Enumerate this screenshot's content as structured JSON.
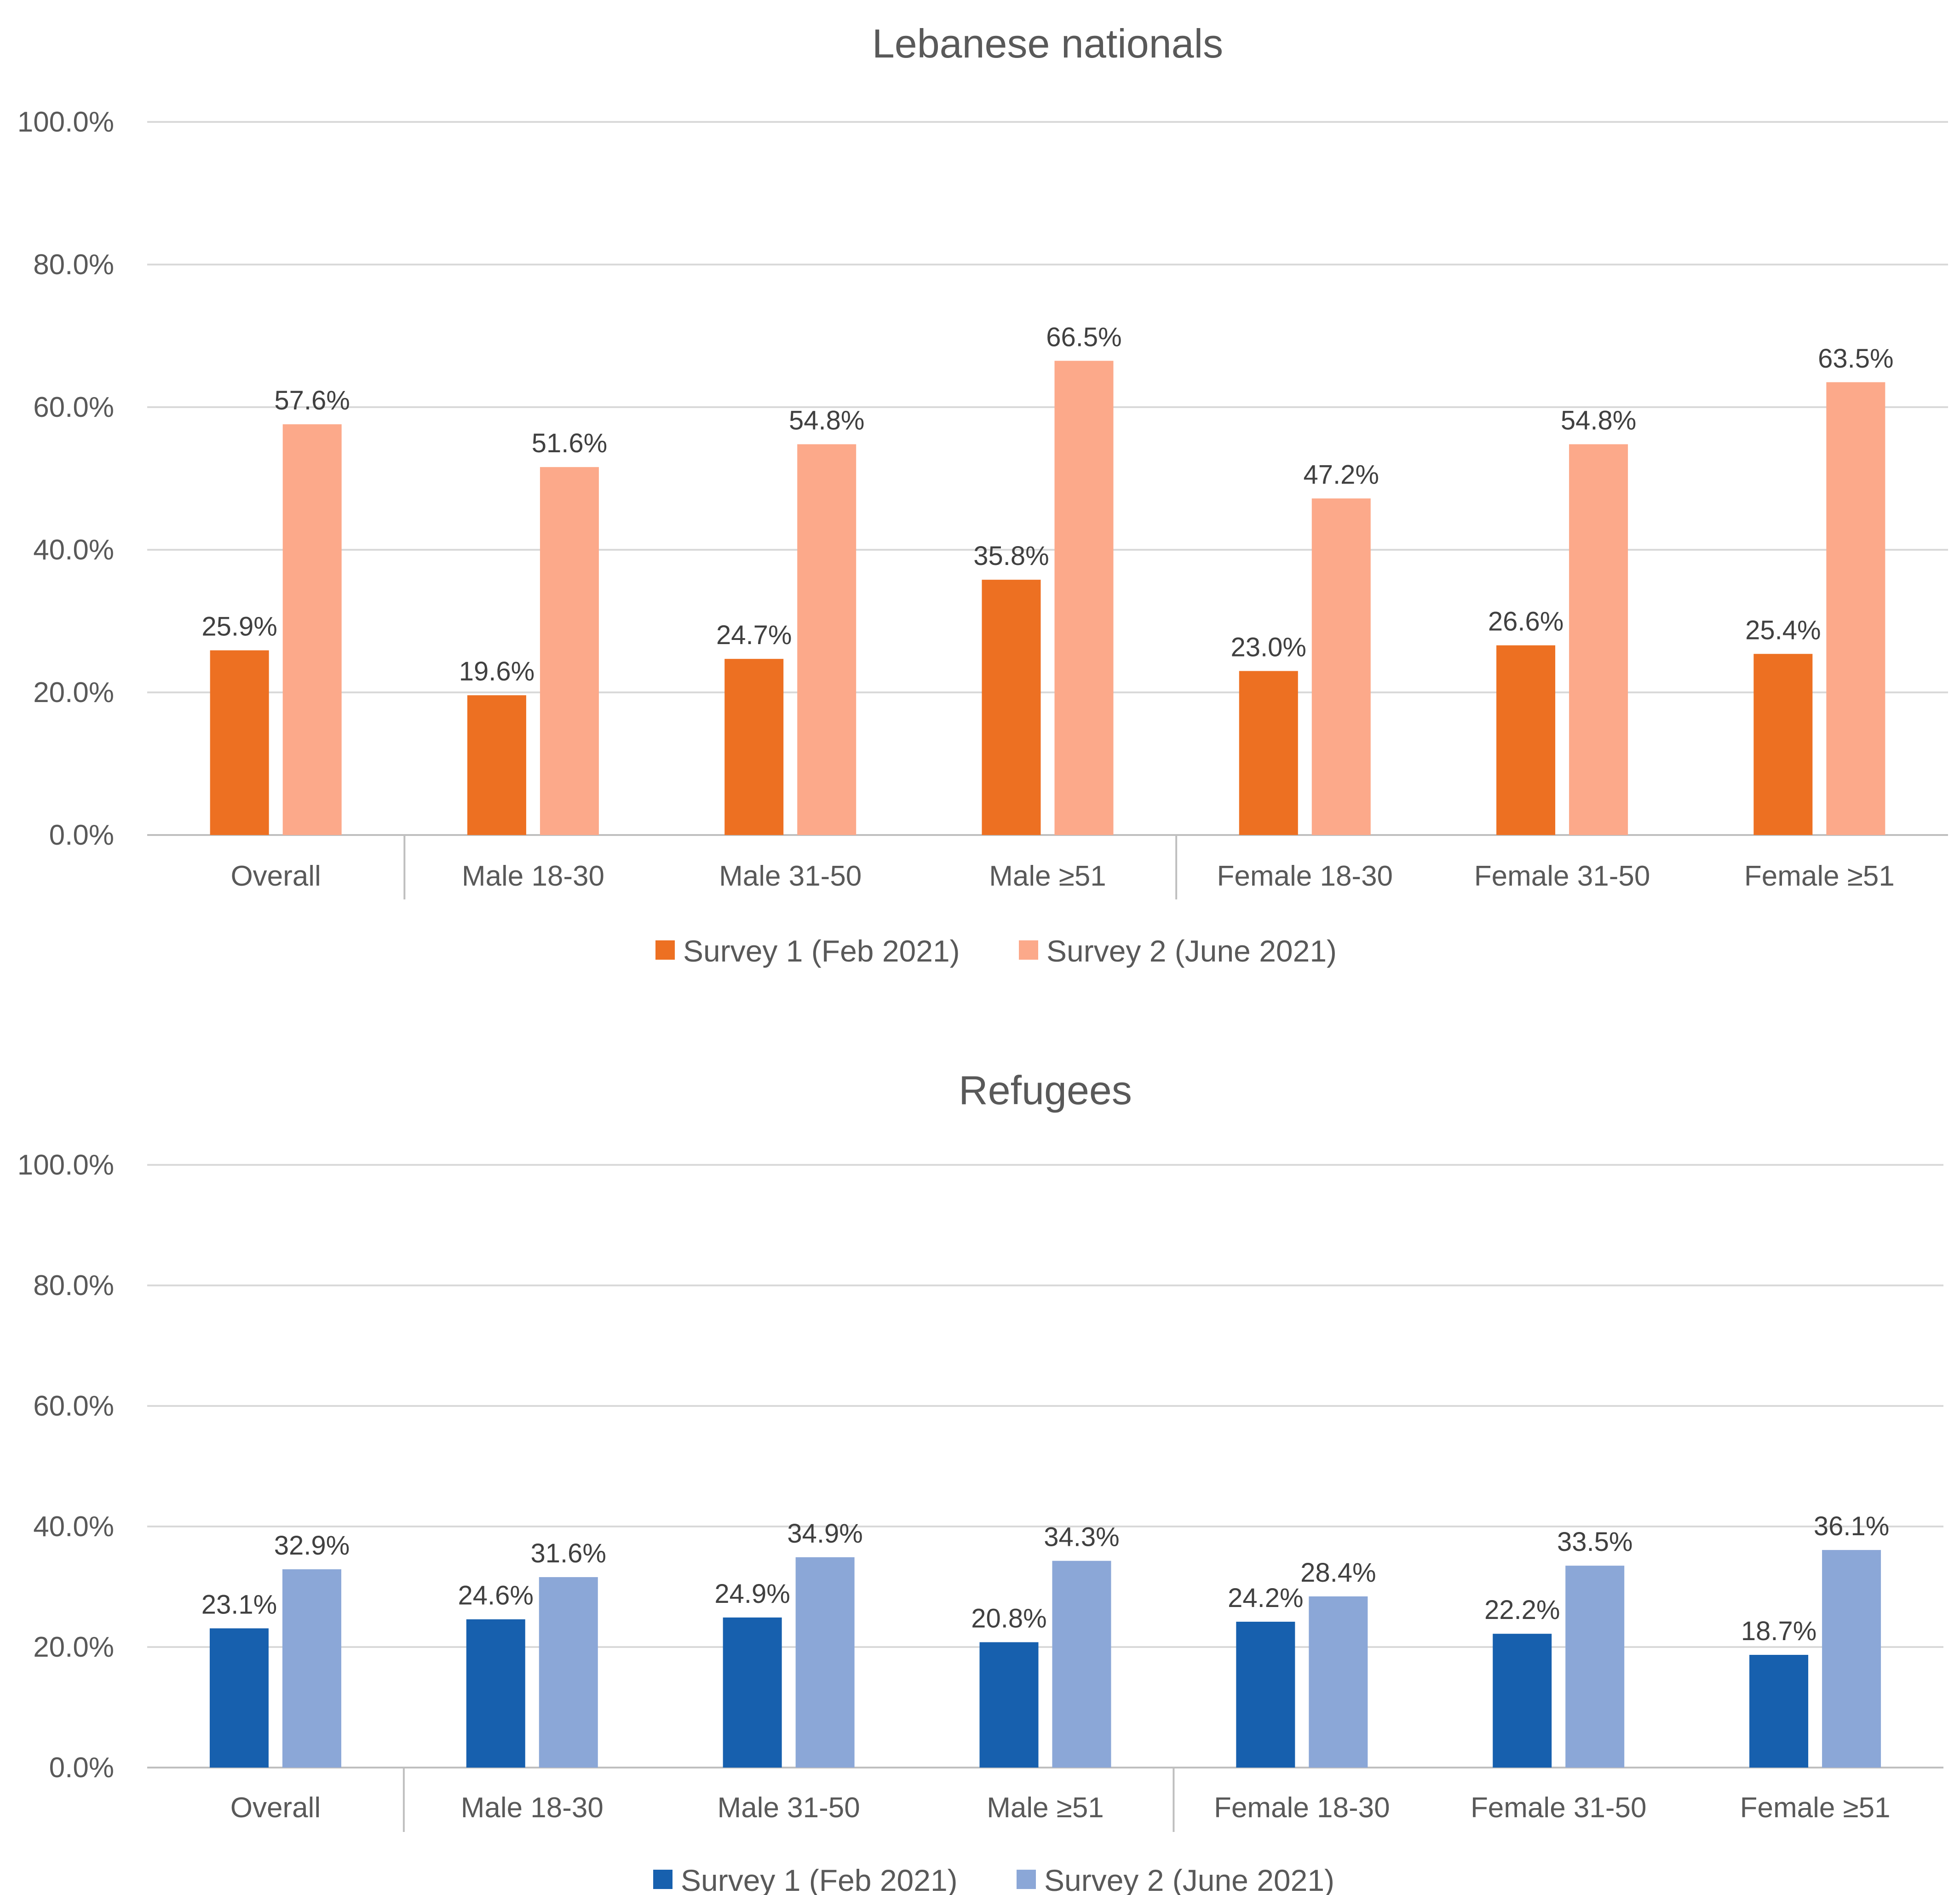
{
  "chart_data": [
    {
      "type": "bar",
      "title": "Lebanese nationals",
      "categories": [
        "Overall",
        "Male 18-30",
        "Male 31-50",
        "Male ≥51",
        "Female 18-30",
        "Female 31-50",
        "Female ≥51"
      ],
      "series": [
        {
          "name": "Survey 1 (Feb 2021)",
          "color": "#ED7022",
          "values": [
            25.9,
            19.6,
            24.7,
            35.8,
            23.0,
            26.6,
            25.4
          ],
          "labels": [
            "25.9%",
            "19.6%",
            "24.7%",
            "35.8%",
            "23.0%",
            "26.6%",
            "25.4%"
          ]
        },
        {
          "name": "Survey 2 (June 2021)",
          "color": "#FCA98A",
          "values": [
            57.6,
            51.6,
            54.8,
            66.5,
            47.2,
            54.8,
            63.5
          ],
          "labels": [
            "57.6%",
            "51.6%",
            "54.8%",
            "66.5%",
            "47.2%",
            "54.8%",
            "63.5%"
          ]
        }
      ],
      "ylim": [
        0,
        100
      ],
      "yticks": [
        "0.0%",
        "20.0%",
        "40.0%",
        "60.0%",
        "80.0%",
        "100.0%"
      ],
      "grid": true,
      "legend": "bottom"
    },
    {
      "type": "bar",
      "title": "Refugees",
      "categories": [
        "Overall",
        "Male 18-30",
        "Male 31-50",
        "Male ≥51",
        "Female 18-30",
        "Female 31-50",
        "Female ≥51"
      ],
      "series": [
        {
          "name": "Survey 1 (Feb 2021)",
          "color": "#1760AE",
          "values": [
            23.1,
            24.6,
            24.9,
            20.8,
            24.2,
            22.2,
            18.7
          ],
          "labels": [
            "23.1%",
            "24.6%",
            "24.9%",
            "20.8%",
            "24.2%",
            "22.2%",
            "18.7%"
          ]
        },
        {
          "name": "Survey 2 (June 2021)",
          "color": "#8BA7D7",
          "values": [
            32.9,
            31.6,
            34.9,
            34.3,
            28.4,
            33.5,
            36.1
          ],
          "labels": [
            "32.9%",
            "31.6%",
            "34.9%",
            "34.3%",
            "28.4%",
            "33.5%",
            "36.1%"
          ]
        }
      ],
      "ylim": [
        0,
        100
      ],
      "yticks": [
        "0.0%",
        "20.0%",
        "40.0%",
        "60.0%",
        "80.0%",
        "100.0%"
      ],
      "grid": true,
      "legend": "bottom"
    }
  ]
}
